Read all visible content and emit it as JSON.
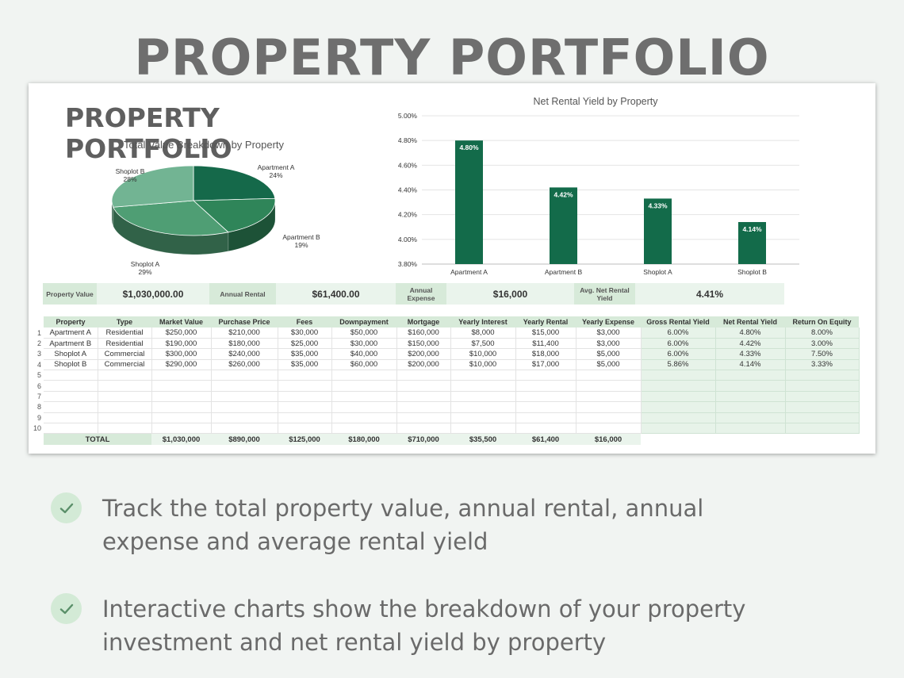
{
  "page": {
    "title": "PROPERTY PORTFOLIO",
    "bullets": [
      "Track the total property value, annual rental, annual expense  and average rental yield",
      "Interactive charts show the breakdown of your property investment and net rental yield by property"
    ]
  },
  "sheet": {
    "title": "PROPERTY PORTFOLIO",
    "summary": {
      "property_value_label": "Property Value",
      "property_value": "$1,030,000.00",
      "annual_rental_label": "Annual Rental",
      "annual_rental": "$61,400.00",
      "annual_expense_label": "Annual Expense",
      "annual_expense": "$16,000",
      "avg_yield_label": "Avg. Net Rental Yield",
      "avg_yield": "4.41%"
    },
    "table": {
      "headers": [
        "Property",
        "Type",
        "Market Value",
        "Purchase Price",
        "Fees",
        "Downpayment",
        "Mortgage",
        "Yearly Interest",
        "Yearly Rental",
        "Yearly Expense",
        "Gross Rental Yield",
        "Net Rental Yield",
        "Return On Equity"
      ],
      "row_numbers": [
        "1",
        "2",
        "3",
        "4",
        "5",
        "6",
        "7",
        "8",
        "9",
        "10"
      ],
      "rows": [
        [
          "Apartment A",
          "Residential",
          "$250,000",
          "$210,000",
          "$30,000",
          "$50,000",
          "$160,000",
          "$8,000",
          "$15,000",
          "$3,000",
          "6.00%",
          "4.80%",
          "8.00%"
        ],
        [
          "Apartment B",
          "Residential",
          "$190,000",
          "$180,000",
          "$25,000",
          "$30,000",
          "$150,000",
          "$7,500",
          "$11,400",
          "$3,000",
          "6.00%",
          "4.42%",
          "3.00%"
        ],
        [
          "Shoplot A",
          "Commercial",
          "$300,000",
          "$240,000",
          "$35,000",
          "$40,000",
          "$200,000",
          "$10,000",
          "$18,000",
          "$5,000",
          "6.00%",
          "4.33%",
          "7.50%"
        ],
        [
          "Shoplot B",
          "Commercial",
          "$290,000",
          "$260,000",
          "$35,000",
          "$60,000",
          "$200,000",
          "$10,000",
          "$17,000",
          "$5,000",
          "5.86%",
          "4.14%",
          "3.33%"
        ]
      ],
      "total_label": "TOTAL",
      "totals": [
        "$1,030,000",
        "$890,000",
        "$125,000",
        "$180,000",
        "$710,000",
        "$35,500",
        "$61,400",
        "$16,000"
      ]
    }
  },
  "colors": {
    "accent_dark": "#136b4a",
    "accent_light_fill": "#d7ead9",
    "calc_fill": "#e7f3e9"
  },
  "icons": {
    "bullet": "check-icon"
  },
  "chart_data": [
    {
      "type": "pie",
      "title": "Total Value Breakdown by Property",
      "categories": [
        "Apartment A",
        "Apartment B",
        "Shoplot A",
        "Shoplot B"
      ],
      "values": [
        24,
        19,
        29,
        28
      ],
      "labels": [
        "24%",
        "19%",
        "29%",
        "28%"
      ],
      "colors": [
        "#15694a",
        "#2f8559",
        "#4f9e74",
        "#72b493"
      ],
      "style": "3d"
    },
    {
      "type": "bar",
      "title": "Net Rental Yield by Property",
      "categories": [
        "Apartment A",
        "Apartment B",
        "Shoplot A",
        "Shoplot B"
      ],
      "values": [
        4.8,
        4.42,
        4.33,
        4.14
      ],
      "labels": [
        "4.80%",
        "4.42%",
        "4.33%",
        "4.14%"
      ],
      "yticks": [
        "3.80%",
        "4.00%",
        "4.20%",
        "4.40%",
        "4.60%",
        "4.80%",
        "5.00%"
      ],
      "ylim": [
        3.8,
        5.0
      ],
      "grid": true,
      "color": "#136b4a"
    }
  ]
}
